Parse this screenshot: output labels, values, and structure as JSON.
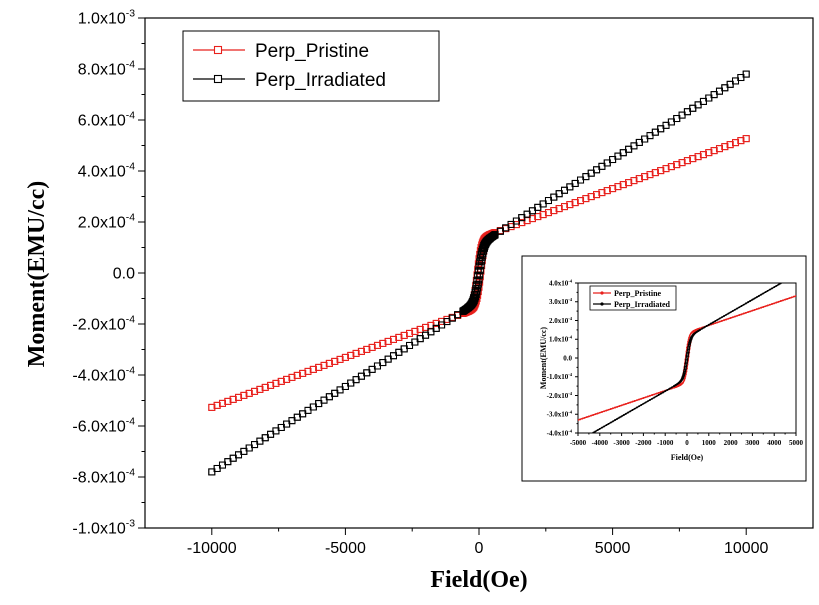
{
  "chart_data": [
    {
      "type": "scatter",
      "title": "",
      "xlabel": "Field(Oe)",
      "ylabel": "Moment(EMU/cc)",
      "xlim": [
        -12500,
        12500
      ],
      "ylim": [
        -0.001,
        0.001
      ],
      "x_ticks": [
        -10000,
        -5000,
        0,
        5000,
        10000
      ],
      "x_tick_labels": [
        "-10000",
        "-5000",
        "0",
        "5000",
        "10000"
      ],
      "y_ticks": [
        -0.001,
        -0.0008,
        -0.0006,
        -0.0004,
        -0.0002,
        0,
        0.0002,
        0.0004,
        0.0006,
        0.0008,
        0.001
      ],
      "y_tick_labels": [
        {
          "mantissa": "-1.0",
          "exp": "-3"
        },
        {
          "mantissa": "-8.0",
          "exp": "-4"
        },
        {
          "mantissa": "-6.0",
          "exp": "-4"
        },
        {
          "mantissa": "-4.0",
          "exp": "-4"
        },
        {
          "mantissa": "-2.0",
          "exp": "-4"
        },
        {
          "mantissa": "0.0",
          "exp": ""
        },
        {
          "mantissa": "2.0",
          "exp": "-4"
        },
        {
          "mantissa": "4.0",
          "exp": "-4"
        },
        {
          "mantissa": "6.0",
          "exp": "-4"
        },
        {
          "mantissa": "8.0",
          "exp": "-4"
        },
        {
          "mantissa": "1.0",
          "exp": "-3"
        }
      ],
      "x_label_base": "x10",
      "legend_position": "top-left",
      "grid": false,
      "series": [
        {
          "name": "Perp_Pristine",
          "color": "#e8201c",
          "marker": "open-square",
          "x_range": [
            -10000,
            10000
          ],
          "step": 200,
          "saturation_moment": 0.000135,
          "high_field_slope": 3.92e-08,
          "coercive_field": 70
        },
        {
          "name": "Perp_Irradiated",
          "color": "#000000",
          "marker": "open-square",
          "x_range": [
            -10000,
            10000
          ],
          "step": 200,
          "saturation_moment": 0.00011,
          "high_field_slope": 6.7e-08,
          "coercive_field": 40
        }
      ]
    },
    {
      "type": "line",
      "title": "",
      "xlabel": "Field(Oe)",
      "ylabel": "Moment(EMU/cc)",
      "xlim": [
        -5000,
        5000
      ],
      "ylim": [
        -0.0004,
        0.0004
      ],
      "x_ticks": [
        -5000,
        -4000,
        -3000,
        -2000,
        -1000,
        0,
        1000,
        2000,
        3000,
        4000,
        5000
      ],
      "x_tick_labels": [
        "-5000",
        "-4000",
        "-3000",
        "-2000",
        "-1000",
        "0",
        "1000",
        "2000",
        "3000",
        "4000",
        "5000"
      ],
      "y_ticks": [
        -0.0004,
        -0.0003,
        -0.0002,
        -0.0001,
        0,
        0.0001,
        0.0002,
        0.0003,
        0.0004
      ],
      "y_tick_labels": [
        {
          "mantissa": "-4.0",
          "exp": "-4"
        },
        {
          "mantissa": "-3.0",
          "exp": "-4"
        },
        {
          "mantissa": "-2.0",
          "exp": "-4"
        },
        {
          "mantissa": "-1.0",
          "exp": "-4"
        },
        {
          "mantissa": "0.0",
          "exp": ""
        },
        {
          "mantissa": "1.0",
          "exp": "-4"
        },
        {
          "mantissa": "2.0",
          "exp": "-4"
        },
        {
          "mantissa": "3.0",
          "exp": "-4"
        },
        {
          "mantissa": "4.0",
          "exp": "-4"
        }
      ],
      "x_label_base": "x10",
      "legend_position": "top-left",
      "grid": false,
      "series": [
        {
          "name": "Perp_Pristine",
          "color": "#e8201c",
          "marker": "filled-circle",
          "x_range": [
            -5000,
            5000
          ],
          "step": 100,
          "saturation_moment": 0.000135,
          "high_field_slope": 3.92e-08,
          "coercive_field": 70
        },
        {
          "name": "Perp_Irradiated",
          "color": "#000000",
          "marker": "filled-circle",
          "x_range": [
            -5000,
            5000
          ],
          "step": 100,
          "saturation_moment": 0.00011,
          "high_field_slope": 6.7e-08,
          "coercive_field": 40
        }
      ]
    }
  ]
}
